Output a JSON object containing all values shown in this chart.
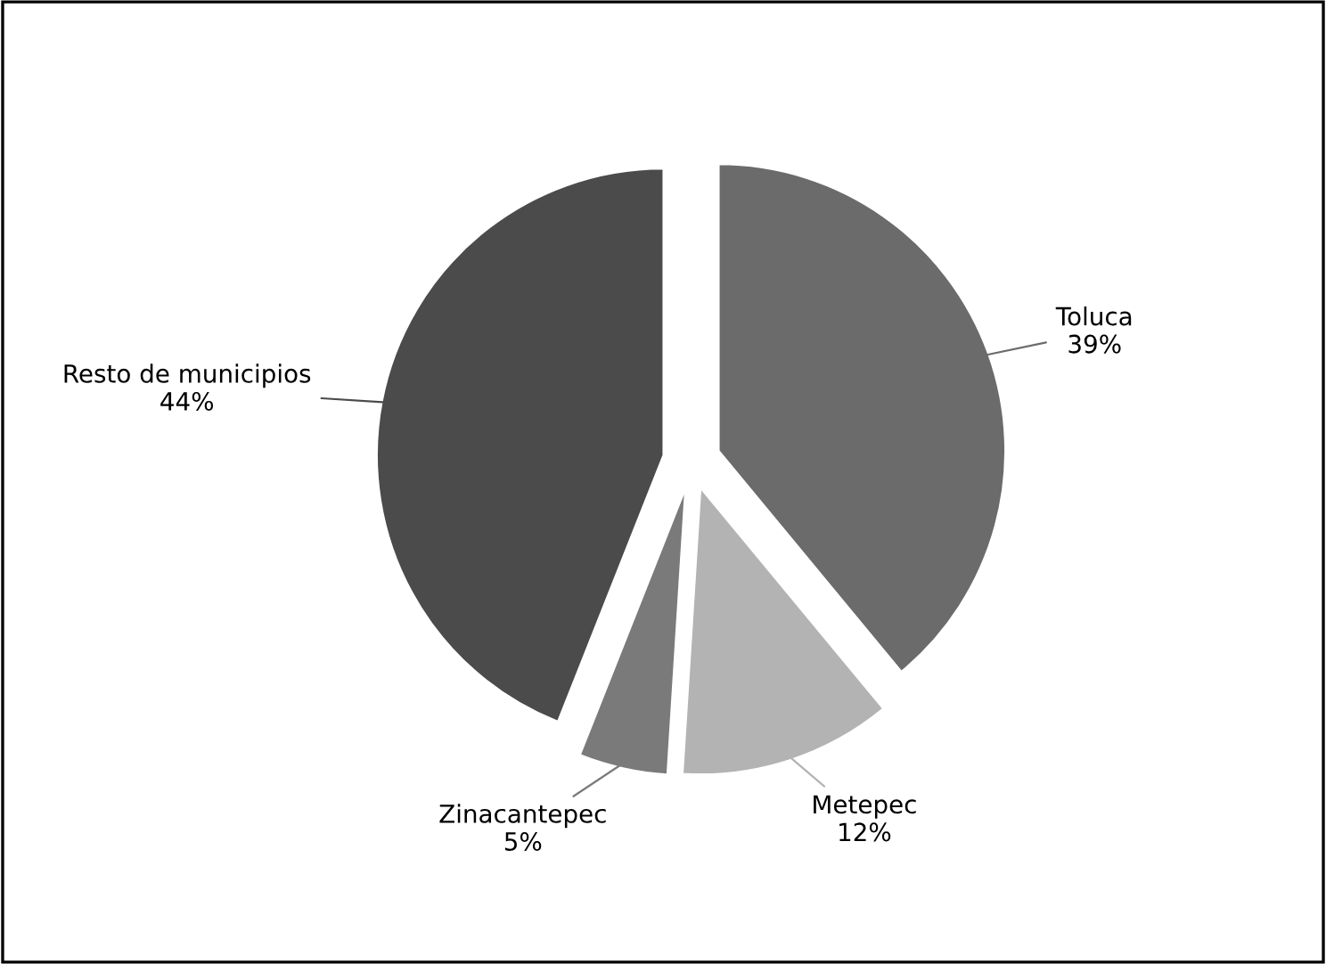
{
  "chart_data": {
    "type": "pie",
    "categories": [
      "Toluca",
      "Metepec",
      "Zinacantepec",
      "Resto de municipios"
    ],
    "values": [
      39,
      12,
      5,
      44
    ],
    "colors": [
      "#6b6b6b",
      "#b3b3b3",
      "#7a7a7a",
      "#4b4b4b"
    ],
    "value_labels": [
      "39%",
      "12%",
      "5%",
      "44%"
    ]
  }
}
